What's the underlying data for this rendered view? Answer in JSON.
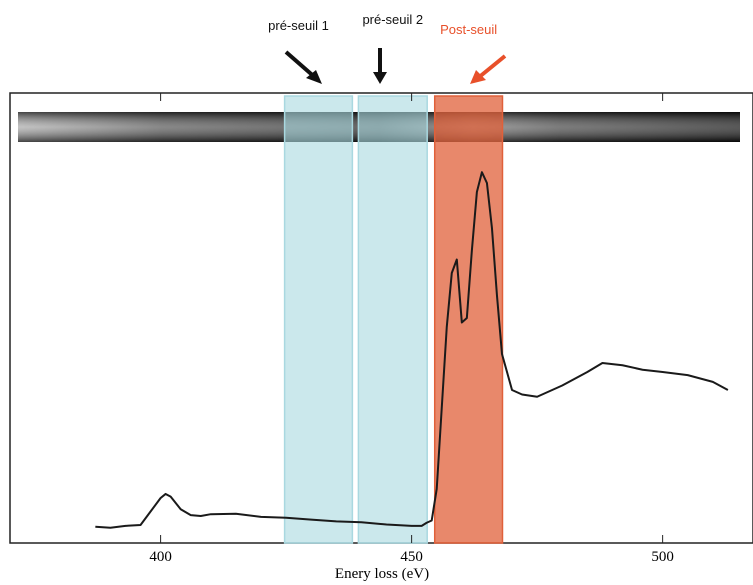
{
  "chart_data": {
    "type": "line",
    "x_label": "Enery loss (eV)",
    "x": [
      387,
      390,
      393,
      396,
      398,
      400,
      401,
      402,
      404,
      406,
      408,
      410,
      415,
      420,
      425,
      430,
      435,
      440,
      445,
      450,
      452,
      453,
      454,
      455,
      456,
      457,
      458,
      459,
      460,
      461,
      462,
      463,
      464,
      465,
      466,
      467,
      468,
      470,
      472,
      475,
      480,
      485,
      488,
      492,
      496,
      500,
      505,
      510,
      513
    ],
    "series": [
      {
        "color": "#1a1a1a",
        "values": [
          3.6,
          3.4,
          3.8,
          4.0,
          7,
          10,
          10.9,
          10.3,
          7.5,
          6.2,
          6.0,
          6.4,
          6.5,
          5.8,
          5.6,
          5.2,
          4.8,
          4.6,
          4.1,
          3.8,
          3.8,
          4.5,
          5,
          12,
          30,
          48,
          60,
          63,
          49,
          50,
          65,
          78,
          82.4,
          80,
          70,
          55,
          42,
          34,
          33,
          32.5,
          35,
          38,
          40,
          39.5,
          38.5,
          38,
          37.3,
          35.8,
          34
        ]
      }
    ],
    "xlim": [
      370,
      518
    ],
    "ylim": [
      0,
      100
    ],
    "xticks": [
      400,
      450,
      500
    ],
    "regions": [
      {
        "label": "pré-seuil 1",
        "range": [
          424.7,
          438.2
        ],
        "color": "#a9d8e0"
      },
      {
        "label": "pré-seuil 2",
        "range": [
          439.4,
          453.1
        ],
        "color": "#a9d8e0"
      },
      {
        "label": "Post-seuil",
        "range": [
          454.6,
          468.1
        ],
        "color": "#e0603a"
      }
    ]
  }
}
